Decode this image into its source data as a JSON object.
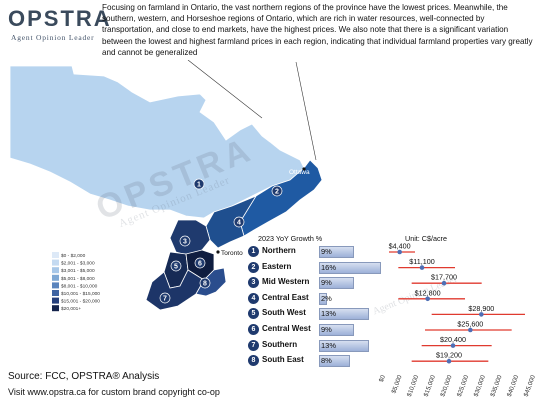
{
  "logo": {
    "name": "OPSTRA",
    "tagline": "Agent Opinion Leader"
  },
  "intro_text": "Focusing on farmland in Ontario, the vast northern regions of the province have the lowest prices. Meanwhile, the southern, western, and Horseshoe regions of Ontario, which are rich in water resources, well-connected by transportation, and close to end markets, have the highest prices. We also note that there is a significant variation between the lowest and highest farmland prices in each region, indicating that individual farmland properties vary greatly and cannot be generalized",
  "map": {
    "city_labels": [
      "Ottawa",
      "Toronto"
    ],
    "region_numbers": [
      "1",
      "2",
      "3",
      "4",
      "5",
      "6",
      "7",
      "8"
    ],
    "legend": [
      "$0 - $2,000",
      "$2,001 - $3,000",
      "$3,001 - $5,000",
      "$5,001 - $8,000",
      "$8,001 - $10,000",
      "$10,001 - $15,000",
      "$15,001 - $20,000",
      "$20,001+"
    ],
    "legend_colors": [
      "#dde9f7",
      "#c4daf1",
      "#a7c7e8",
      "#7fa8d4",
      "#5a84bd",
      "#3e63a2",
      "#253f7c",
      "#14234c"
    ],
    "colors": {
      "northern": "#b7d4ef",
      "eastern": "#1f5aa3",
      "mid_western": "#1f3a6e",
      "central_east": "#1f4f8f",
      "south_west": "#162a55",
      "central_west": "#0f1d40",
      "southern": "#1d3568",
      "south_east": "#2a4d8d"
    }
  },
  "chart_data": {
    "type": "range",
    "growth_header": "2023 YoY Growth %",
    "unit_header": "Unit: C$/acre",
    "rows": [
      {
        "num": "1",
        "region": "Northern",
        "growth": 9,
        "growth_label": "9%",
        "price": 4400,
        "price_label": "$4,400",
        "low": 1200,
        "high": 9000
      },
      {
        "num": "2",
        "region": "Eastern",
        "growth": 16,
        "growth_label": "16%",
        "price": 11100,
        "price_label": "$11,100",
        "low": 4000,
        "high": 21000
      },
      {
        "num": "3",
        "region": "Mid Western",
        "growth": 9,
        "growth_label": "9%",
        "price": 17700,
        "price_label": "$17,700",
        "low": 8000,
        "high": 29000
      },
      {
        "num": "4",
        "region": "Central East",
        "growth": 2,
        "growth_label": "2%",
        "price": 12800,
        "price_label": "$12,800",
        "low": 4000,
        "high": 24000
      },
      {
        "num": "5",
        "region": "South West",
        "growth": 13,
        "growth_label": "13%",
        "price": 28900,
        "price_label": "$28,900",
        "low": 14000,
        "high": 42000
      },
      {
        "num": "6",
        "region": "Central West",
        "growth": 9,
        "growth_label": "9%",
        "price": 25600,
        "price_label": "$25,600",
        "low": 12000,
        "high": 38000
      },
      {
        "num": "7",
        "region": "Southern",
        "growth": 13,
        "growth_label": "13%",
        "price": 20400,
        "price_label": "$20,400",
        "low": 11000,
        "high": 32000
      },
      {
        "num": "8",
        "region": "South East",
        "growth": 8,
        "growth_label": "8%",
        "price": 19200,
        "price_label": "$19,200",
        "low": 8000,
        "high": 31000
      }
    ],
    "xlim": [
      0,
      45000
    ],
    "x_ticks": [
      0,
      5000,
      10000,
      15000,
      20000,
      25000,
      30000,
      35000,
      40000,
      45000
    ],
    "x_tick_labels": [
      "$0",
      "$5,000",
      "$10,000",
      "$15,000",
      "$20,000",
      "$25,000",
      "$30,000",
      "$35,000",
      "$40,000",
      "$45,000"
    ],
    "colors": {
      "range_line": "#e03a2f",
      "marker": "#4f6fb5",
      "growth_bar_border": "#8899bb"
    }
  },
  "footer": {
    "source": "Source: FCC, OPSTRA® Analysis",
    "website": "Visit www.opstra.ca for custom brand copyright co-op"
  },
  "watermark": {
    "name": "OPSTRA",
    "tagline": "Agent Opinion Leader"
  }
}
